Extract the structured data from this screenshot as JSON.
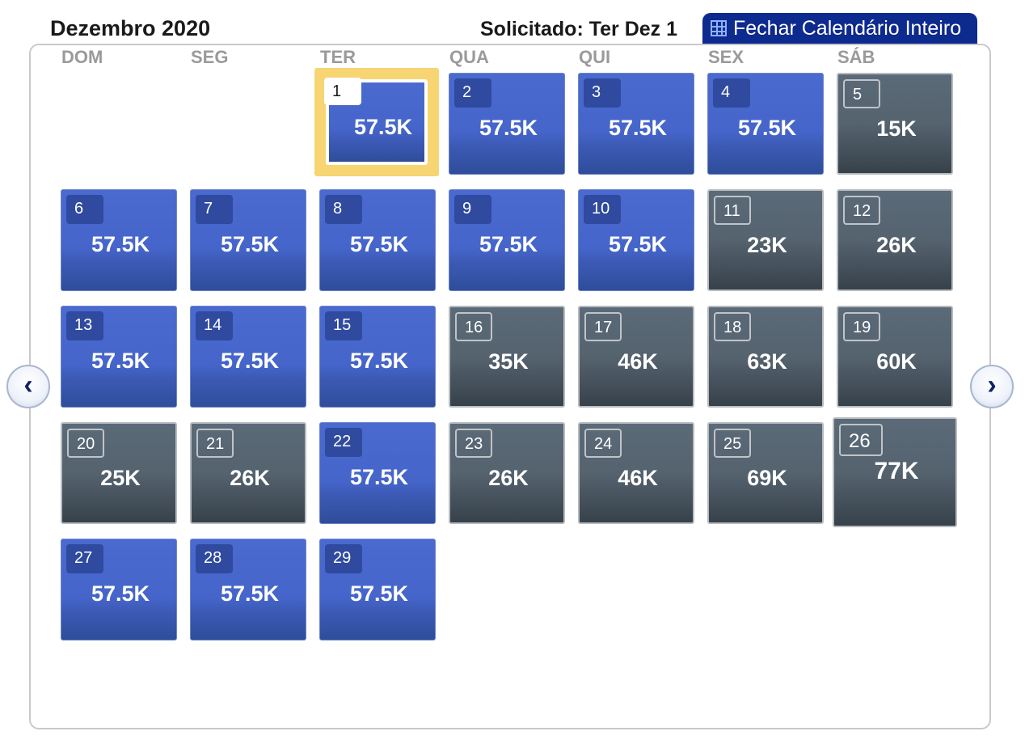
{
  "header": {
    "month": "Dezembro 2020",
    "requested": "Solicitado: Ter Dez 1",
    "close_label": "Fechar Calendário Inteiro"
  },
  "weekdays": [
    "DOM",
    "SEG",
    "TER",
    "QUA",
    "QUI",
    "SEX",
    "SÁB"
  ],
  "days": [
    {
      "day": "1",
      "price": "57.5K",
      "status": "blue",
      "selected": true
    },
    {
      "day": "2",
      "price": "57.5K",
      "status": "blue"
    },
    {
      "day": "3",
      "price": "57.5K",
      "status": "blue"
    },
    {
      "day": "4",
      "price": "57.5K",
      "status": "blue"
    },
    {
      "day": "5",
      "price": "15K",
      "status": "gray"
    },
    {
      "day": "6",
      "price": "57.5K",
      "status": "blue"
    },
    {
      "day": "7",
      "price": "57.5K",
      "status": "blue"
    },
    {
      "day": "8",
      "price": "57.5K",
      "status": "blue"
    },
    {
      "day": "9",
      "price": "57.5K",
      "status": "blue"
    },
    {
      "day": "10",
      "price": "57.5K",
      "status": "blue"
    },
    {
      "day": "11",
      "price": "23K",
      "status": "gray"
    },
    {
      "day": "12",
      "price": "26K",
      "status": "gray"
    },
    {
      "day": "13",
      "price": "57.5K",
      "status": "blue"
    },
    {
      "day": "14",
      "price": "57.5K",
      "status": "blue"
    },
    {
      "day": "15",
      "price": "57.5K",
      "status": "blue"
    },
    {
      "day": "16",
      "price": "35K",
      "status": "gray"
    },
    {
      "day": "17",
      "price": "46K",
      "status": "gray"
    },
    {
      "day": "18",
      "price": "63K",
      "status": "gray"
    },
    {
      "day": "19",
      "price": "60K",
      "status": "gray"
    },
    {
      "day": "20",
      "price": "25K",
      "status": "gray"
    },
    {
      "day": "21",
      "price": "26K",
      "status": "gray"
    },
    {
      "day": "22",
      "price": "57.5K",
      "status": "blue"
    },
    {
      "day": "23",
      "price": "26K",
      "status": "gray"
    },
    {
      "day": "24",
      "price": "46K",
      "status": "gray"
    },
    {
      "day": "25",
      "price": "69K",
      "status": "gray"
    },
    {
      "day": "26",
      "price": "77K",
      "status": "gray",
      "hovered": true
    },
    {
      "day": "27",
      "price": "57.5K",
      "status": "blue"
    },
    {
      "day": "28",
      "price": "57.5K",
      "status": "blue"
    },
    {
      "day": "29",
      "price": "57.5K",
      "status": "blue"
    }
  ],
  "nav": {
    "prev_icon": "chevron-left-icon",
    "next_icon": "chevron-right-icon",
    "prev_glyph": "‹",
    "next_glyph": "›"
  },
  "colors": {
    "available_blue": "#4565cb",
    "unavailable_gray": "#55636f",
    "selected_gold": "#f6d572",
    "header_button": "#0d2a8e"
  }
}
